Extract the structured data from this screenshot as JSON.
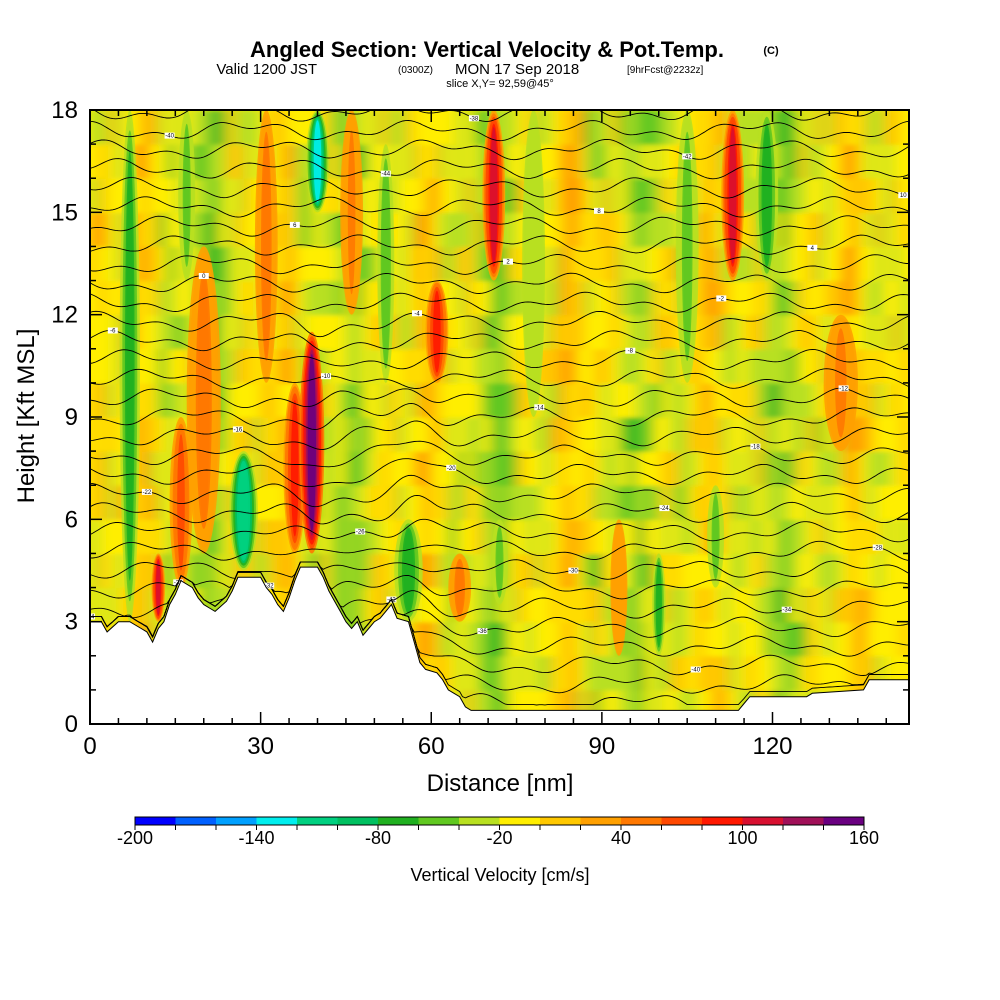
{
  "chart_data": {
    "type": "heatmap",
    "title": {
      "main": "Angled Section: Vertical Velocity & Pot.Temp.",
      "unit": "(C)",
      "valid_prefix": "Valid 1200 JST",
      "valid_z": "(0300Z)",
      "valid_date": "MON 17 Sep 2018",
      "forecast": "[9hrFcst@2232z]",
      "slice": "slice X,Y= 92,59@45°"
    },
    "xlabel": "Distance [nm]",
    "ylabel": "Height [Kft MSL]",
    "xlim": [
      0,
      144
    ],
    "ylim": [
      0,
      18
    ],
    "x_ticks": [
      0,
      30,
      60,
      90,
      120
    ],
    "y_ticks": [
      0,
      3,
      6,
      9,
      12,
      15,
      18
    ],
    "colorbar": {
      "title": "Vertical Velocity [cm/s]",
      "min": -200,
      "max": 160,
      "step": 20,
      "labels": [
        "-200",
        "-140",
        "-80",
        "-20",
        "40",
        "100",
        "160"
      ],
      "colors": [
        "#0000ff",
        "#0060ff",
        "#00a0ff",
        "#00eeee",
        "#00d080",
        "#00c060",
        "#20b020",
        "#60c820",
        "#b8e020",
        "#ffee00",
        "#ffc800",
        "#ffa000",
        "#ff7800",
        "#ff4800",
        "#ff1800",
        "#d81030",
        "#a01058",
        "#6a0080"
      ]
    },
    "vertical_velocity_features": [
      {
        "x": 7,
        "z0": 3,
        "z1": 18,
        "w": -70,
        "width": 1.8
      },
      {
        "x": 12,
        "z0": 3,
        "z1": 5,
        "w": 100,
        "width": 1.2
      },
      {
        "x": 16,
        "z0": 4,
        "z1": 9,
        "w": 60,
        "width": 2.0
      },
      {
        "x": 17,
        "z0": 13,
        "z1": 18,
        "w": -45,
        "width": 1.5
      },
      {
        "x": 20,
        "z0": 5,
        "z1": 14,
        "w": 45,
        "width": 3.0
      },
      {
        "x": 27,
        "z0": 4.5,
        "z1": 8,
        "w": -120,
        "width": 2.5
      },
      {
        "x": 31,
        "z0": 10,
        "z1": 18,
        "w": 45,
        "width": 2.0
      },
      {
        "x": 36,
        "z0": 5,
        "z1": 10,
        "w": 80,
        "width": 2.0
      },
      {
        "x": 39,
        "z0": 5,
        "z1": 11.5,
        "w": 150,
        "width": 2.2
      },
      {
        "x": 40,
        "z0": 15,
        "z1": 18,
        "w": -140,
        "width": 2.0
      },
      {
        "x": 46,
        "z0": 12,
        "z1": 18,
        "w": 40,
        "width": 2.0
      },
      {
        "x": 52,
        "z0": 10,
        "z1": 17,
        "w": -60,
        "width": 1.5
      },
      {
        "x": 56,
        "z0": 3,
        "z1": 6,
        "w": -80,
        "width": 2.5
      },
      {
        "x": 61,
        "z0": 10,
        "z1": 13,
        "w": 90,
        "width": 2.0
      },
      {
        "x": 65,
        "z0": 3,
        "z1": 5,
        "w": 45,
        "width": 2.0
      },
      {
        "x": 71,
        "z0": 13,
        "z1": 18,
        "w": 100,
        "width": 2.0
      },
      {
        "x": 72,
        "z0": 3.5,
        "z1": 6,
        "w": -50,
        "width": 1.5
      },
      {
        "x": 78,
        "z0": 9,
        "z1": 18,
        "w": -40,
        "width": 2.0
      },
      {
        "x": 93,
        "z0": 2,
        "z1": 6,
        "w": 35,
        "width": 1.5
      },
      {
        "x": 100,
        "z0": 2,
        "z1": 5,
        "w": -80,
        "width": 1.2
      },
      {
        "x": 105,
        "z0": 10,
        "z1": 18,
        "w": -50,
        "width": 2.0
      },
      {
        "x": 110,
        "z0": 4,
        "z1": 7,
        "w": -50,
        "width": 1.5
      },
      {
        "x": 113,
        "z0": 13,
        "z1": 18,
        "w": 100,
        "width": 2.0
      },
      {
        "x": 119,
        "z0": 13,
        "z1": 18,
        "w": -80,
        "width": 2.0
      },
      {
        "x": 132,
        "z0": 8,
        "z1": 12,
        "w": 40,
        "width": 3.0
      }
    ],
    "terrain_height_kft": [
      [
        0,
        3.0
      ],
      [
        2,
        3.0
      ],
      [
        3,
        2.7
      ],
      [
        5,
        3.0
      ],
      [
        7,
        3.0
      ],
      [
        9,
        2.8
      ],
      [
        10,
        2.7
      ],
      [
        11,
        2.4
      ],
      [
        12,
        2.8
      ],
      [
        13,
        3.0
      ],
      [
        14,
        3.5
      ],
      [
        15,
        3.8
      ],
      [
        16,
        4.2
      ],
      [
        18,
        4.0
      ],
      [
        19,
        3.7
      ],
      [
        20,
        3.5
      ],
      [
        21,
        3.4
      ],
      [
        22,
        3.3
      ],
      [
        24,
        3.6
      ],
      [
        25,
        3.9
      ],
      [
        26,
        4.3
      ],
      [
        30,
        4.3
      ],
      [
        31,
        4.0
      ],
      [
        32,
        3.8
      ],
      [
        33,
        3.5
      ],
      [
        34,
        3.3
      ],
      [
        35,
        3.7
      ],
      [
        36,
        4.2
      ],
      [
        37,
        4.6
      ],
      [
        40,
        4.6
      ],
      [
        41,
        4.3
      ],
      [
        42,
        3.9
      ],
      [
        43,
        3.6
      ],
      [
        44,
        3.3
      ],
      [
        45,
        3.0
      ],
      [
        46,
        2.8
      ],
      [
        47,
        3.0
      ],
      [
        48,
        2.6
      ],
      [
        49,
        2.8
      ],
      [
        50,
        3.0
      ],
      [
        51,
        3.1
      ],
      [
        52,
        3.3
      ],
      [
        53,
        3.5
      ],
      [
        54,
        3.1
      ],
      [
        56,
        3.0
      ],
      [
        57,
        2.4
      ],
      [
        58,
        1.8
      ],
      [
        59,
        1.6
      ],
      [
        61,
        1.5
      ],
      [
        62,
        1.3
      ],
      [
        63,
        1.0
      ],
      [
        64,
        0.9
      ],
      [
        65,
        0.8
      ],
      [
        66,
        0.5
      ],
      [
        67,
        0.4
      ],
      [
        68,
        0.4
      ],
      [
        114,
        0.4
      ],
      [
        115,
        0.6
      ],
      [
        116,
        0.8
      ],
      [
        126,
        0.8
      ],
      [
        127,
        0.9
      ],
      [
        136,
        1.0
      ],
      [
        137,
        1.3
      ],
      [
        144,
        1.3
      ]
    ],
    "theta_contour_labels": [
      "-44",
      "-42",
      "-40",
      "-38",
      "-36",
      "-34",
      "-32",
      "-30",
      "-28",
      "-26",
      "-24",
      "-22",
      "-20",
      "-18",
      "-16",
      "-14",
      "-12",
      "-10",
      "-8",
      "-6",
      "-4",
      "-2",
      "0",
      "2",
      "4",
      "6",
      "8",
      "10"
    ]
  }
}
